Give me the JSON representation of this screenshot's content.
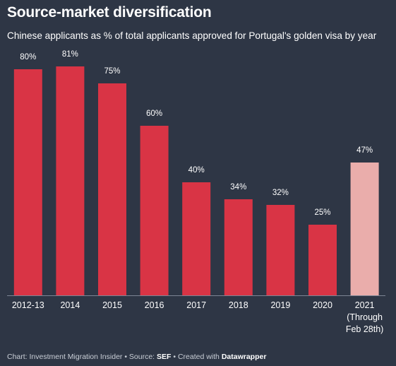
{
  "title": "Source-market diversification",
  "subtitle": "Chinese applicants as % of total applicants approved for Portugal's golden visa by year",
  "footer": {
    "chart_prefix": "Chart: Investment Migration Insider • Source: ",
    "source": "SEF",
    "created_prefix": " • Created with ",
    "tool": "Datawrapper"
  },
  "colors": {
    "background": "#2e3645",
    "bar": "#d93445",
    "bar_highlight": "#eaadab",
    "text": "#ffffff",
    "axis": "#7d8594"
  },
  "chart_data": {
    "type": "bar",
    "categories": [
      "2012-13",
      "2014",
      "2015",
      "2016",
      "2017",
      "2018",
      "2019",
      "2020",
      "2021\n(Through\nFeb 28th)"
    ],
    "values": [
      80,
      81,
      75,
      60,
      40,
      34,
      32,
      25,
      47
    ],
    "value_labels": [
      "80%",
      "81%",
      "75%",
      "60%",
      "40%",
      "34%",
      "32%",
      "25%",
      "47%"
    ],
    "highlight_index": 8,
    "title": "Source-market diversification",
    "subtitle": "Chinese applicants as % of total applicants approved for Portugal's golden visa by year",
    "xlabel": "",
    "ylabel": "",
    "ylim": [
      0,
      100
    ],
    "grid": false,
    "legend": "none"
  }
}
